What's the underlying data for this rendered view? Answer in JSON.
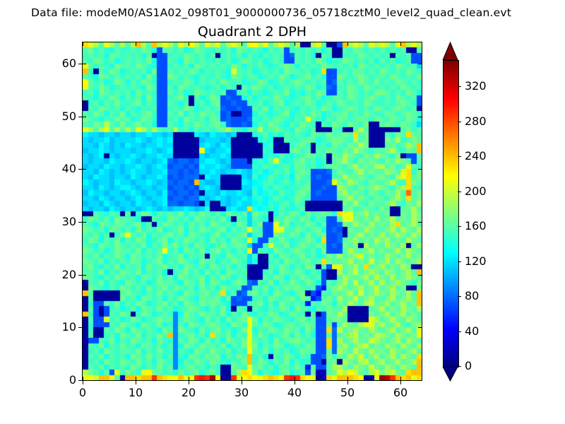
{
  "page": {
    "background": "#ffffff"
  },
  "header": {
    "datafile_label": "Data file: modeM0/AS1A02_098T01_9000000736_05718cztM0_level2_quad_clean.evt"
  },
  "chart_data": {
    "type": "heatmap",
    "title": "Quadrant 2 DPH",
    "xlabel": "",
    "ylabel": "",
    "xlim": [
      0,
      64
    ],
    "ylim": [
      0,
      64
    ],
    "x_ticks": [
      0,
      10,
      20,
      30,
      40,
      50,
      60
    ],
    "y_ticks": [
      0,
      10,
      20,
      30,
      40,
      50,
      60
    ],
    "grid_size": [
      64,
      64
    ],
    "colormap": "jet",
    "clim": [
      0,
      350
    ],
    "grid_lines": false,
    "colorbar": {
      "position": "right",
      "ticks": [
        0,
        40,
        80,
        120,
        160,
        200,
        240,
        280,
        320
      ],
      "extend": "both",
      "top_arrow_color": "#800000",
      "bottom_arrow_color": "#000080"
    },
    "value_encoding": "each character c of a grid row string encodes value = index_of(c in '0123456789abcdefghijklmnopqrstuvwxyz') * 10",
    "row_order": "grid[0] is the y=0 (bottom) detector row; characters run x=0..63 left to right",
    "grid": [
      "lmkoolg1oonootonlmolmtutym11tlmnmlnonmtutnml12nlooonm12lyxtonoln",
      "jhgeg7lfhgflmhgfgehfgheghf11gjnmhegfeghefg7h22ghljmkhgjlhjkhgnoo",
      "1gfhegfgfhgegfhfg9fghfgegf11hgflghfgehgfhf5g77gjjhgjhgkhgjhgjhgo",
      "1fgehgfhgfhfgehgf9egfhgfhgfegfhofhgegfhegef771gh1jhgjkghjghjghjo",
      "1gfhegfgehgfhfgeg9fehgfhghegfhgofge1gfhgegf778hfhgjhkghjghjgjhgn",
      "1fgehgfggfhegfhff9gfehgfhgfhegfmgfhegfgefhgg77h8jhgkhgjhhgjhghjg",
      "1gfhegfhfgehgfgeg9ehgfhggfhegfhlhegfhgefgfhg77n8hjghjkghgjhgjhgj",
      "177gfhegfhgfgehff9gfhgehfgehgfhlgfgehfghhgfg77n8jghjhgkjhghjgjhg",
      "1g11fgehgfhegfhgo9fghfgengfhegflfhgefghehfge77g8ghjkghgjjhgjhghl",
      "1f11gfhgehgfgfehg9hgfehfghfgefhlegfhgfhggehf77n8kghjhgjhghjghjgl",
      "1f777gfhgfehgfhef9gehgfghgfehgflgfhgefghfghg77h7gjhgjllhjghjgfhj",
      "1g77lfgefhgefghgg9fhgfehfgehfghlhegfhgfeghfg77ghhg1111ljghjhgjhg",
      "of717gfhg1fhgefgf9ehgfhggfhegfhfegfhgefhgf1g17hgjh1111hghjghjghg",
      "1g717fgefgehgfhfgefghgfegfhe1gf1gfegfhgehgfegfhggj1111ghjghgjhgj",
      "1f77gfhegfhgefghfgehgfhghgfe777fghfgehgfgf5gfhgehgjhgjkghjghjgho",
      "1g11111hfgehgfgegfhgfehggheg7877fgehgfghfhg57ghfjghkghjgghjghjgo",
      "og11111ghgfegfhfgfehgfghfgneg78ghfgehgfegh175gfhghjgkghjhgjhgjgo",
      "1hgfegfhgfgehfghfhgfgehfgehgfg78gfhegfhghgfg75ghjhghjghkghjgh11h",
      "1gfhegfehgfgefhggfehgfhehgfeghg87gfhegfhgfhge7gfhjgkghjgjghjhgfh",
      "hgfegfhgfgehgfhfgehgfghegfhgegf111gfhgegfhgfg711gjhghjgkhgjghjhg",
      "ggfhegfhgfhegfge1fghfgehfgehgfg112fgehgfhgegf711jghkghjhgjhghjgo",
      "ghfegfhegfgehfghfgehgfgehgfgegf2111gfhgegfhg1g7llghjgnghjghgjh11",
      "hgfhegfgfhgefghegfhgfehggegfhgfce11fgehgfghfgnhgghjghgkghjgjhghj",
      "gfhegfhgehgfgfhefghegfg1gfehgfgcf11gehgfghfgefhgjghjkghggjhghjgh",
      "hgfgefhggfhegfgmfgehgfheghfgegfm7gfehgfghgfgeh777gjhghjghghjgjhg",
      "gfehgfhgfgfhegfhghfgehgfeghfghgc77flgfheghgfhg787hgh1jghgjhgj1gj",
      "fhgegfhegfhgefghegfhgfgehfgehgfle77gfhgefghgen778ghjghgjhjghgjhg",
      "gfheg1fhlgfhegfghfgehgfeghegfghcfg77hgfhgehfgh7781ghjghgjghjhgjh",
      "hgfgehgfgehfgfhefghegfhgfghegfglgf77llgfhgfghe7871hggjhgghjgjhgj",
      "gfehgfhgfgheg1fhgfgehfgehgfgehgcfh77lghegfhgeg778hgjhgjghgjnghjg",
      "fhgfgehggfe11gfehgfgehgfgfhe1gfcgfe1gfhgfhgegf77gllhghgjghjghgjh",
      "11gfegf1g1fhgegfgfhegfhgfgehgfgchgf1egfhgehfghgenllghjghgh11hgjh",
      "cbccbdcbccbcdcbcbccdcbce111cdccnedefegfefg1111111ghfghgfhg11ghjg",
      "bccbdcbccbdccbcd8878871c11cbcdccdedfefgegf1111111hgjgfhgghjgfhgj",
      "ccbdcbccbcdcbccd788788cbcdcbccdcefdegfefhgf77777ghjghgfhgfhjgngh",
      "bdccbccbcdcbccbd8788781ccbdccdcbfdefegfeghg78777hjghgfhgfhgjgrgh",
      "ccbdcbcddcbccbcc788787cdcb1111ccedfegfeffgh77877jhgfhghjhgfhjngf",
      "dcbccbdccbccdcbc87887ocbbc1111dcdefgefgegfg7778lhgjhgfhgghjgfnhg",
      "cbdccbccbdcbccdc7878881dcc1111cbfdegfefdhgf7877ggjhghgfhhgfjlngh",
      "ccbdcbcbcdccbccd887878ccdcbccdcbefdegfgeghg7778fhgfhjghggjhglnfh",
      "bccbdccbccdcbcdc788787dccdcb7777fegfefgehgfgefghgfhjghgjjghfglgf",
      "cbccbdccdcbccbcd878878cddcbc7771efeglfefghfgef1ghjgfhghgfhgjhg7g",
      "cbcd1cbccdcbccdcc11111cbccdc111111efegfefghgfg1hgjhgfhgjhgfh177g",
      "bccdcbcccbccdcbcd11111lcbccd111111fe111ghfg1gfhgfhgjhgfgghjgfhgo",
      "ccbdcbcbdccbccdcc11111cdcbdc111111ef111fghf1fgehgfhgjh111ghfgjho",
      "cbccdbccccdcbcdcd11111bcccbc11111efe11gffghgefghhgfjgh111hgjfghg",
      "dccbccbccbccdccbc1111dcbdccbc111efgefegfgfehgfhgghgngh111gfhgnhg",
      "ljgjlgjgjgljgjgfgjfgegfgfghjgfeggjfghgfehgfg111gf11gjg111111ghfg",
      "gfhgjgfhfghfge77gfegfhgfghf87787egfhgfegfhgf1gfhgfhgfh11ghgfhgfc",
      "hgfegfhggefhgf77fgehgfgehg787778fegfhgfegflgfegfhgfghgfhgfhgfhge",
      "gfhgegfhegfghf77gfhegfhggf781177egfefghefgfhgefgghfgfhgffhgfghgf",
      "1gfhgfgegfegfg77fgfhgefgfg877877gfhegfgfegfgfhgefghgfgfhgfghgfg1",
      "1fgegfhffghegf77gfeg1fgegh77877ffgefghefgfhgefgfhgfgfhgffgfghgf7",
      "gfegfhgegfgehf77fghf1gefhg7877egefgfhgfefghfgefggfhgfghgfgfhgfg7",
      "fgehgfgfgehfgf77gfgefhgfgfg77fgegfefgfhefegfhg77gfhgfgfhhgfgfhge",
      "lgfhgefgfgfehg77gehgfgfefgegf1gfhgfgefgfgfhgef87fghgfhgfgfgfhgfg",
      "mgfgefhgegfhgf77fgfhgegfgfhgfgeffhgefgfghgfgfg78gfgfhgfhfgfhgfgf",
      "gfehgfgfgfgehf77hgfgfegffgfehgfggefgfhgefghfge77hgfghgfggfhgfgfh",
      "of1gfhgefgfgeh77gfgfhgegfgfelgfgefgfgehggfgefn77fgfhgfgfhgfgfhgf",
      "lgfgfehggfhgfe77fgfgehgfgfgfhgegfgfefghgegfgfhgfgfgehgfgfgfhgfgc",
      "gfhgfgefgfgfhe77gfehgfgffgfgefhgfgefgf77gfgfhgeffhgfgfgegfgefg77",
      "fgfgehgfgfgeg177fgfhgfgeg1fgfgegfegfgf78gfge1gf11fgfhgfgfg1gfg77",
      "ghfgfegffgfhge7ggfgefhgffgfgehgfgfegfg7fgfgfgeg11gfhgfgfgfgfg11g",
      "nljgljgjgjojgojljgljmjgljlgjljglmjlgjljgj11jlg117ojljgljljglojlj"
    ]
  }
}
